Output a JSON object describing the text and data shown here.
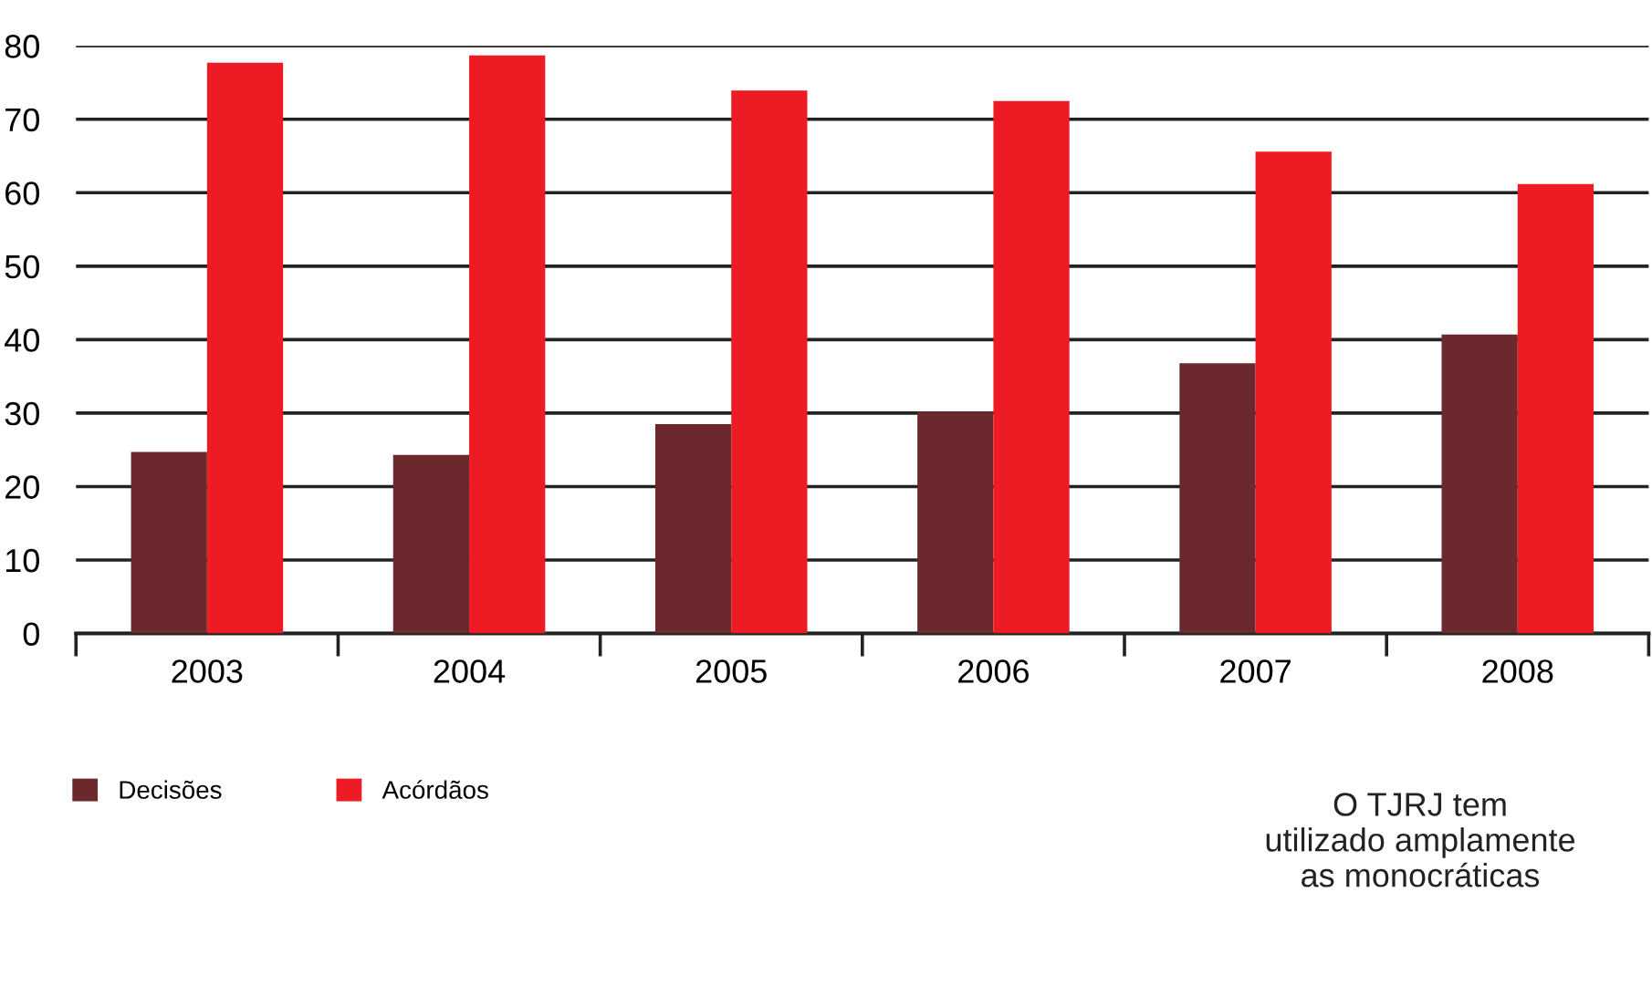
{
  "chart_data": {
    "type": "bar",
    "categories": [
      "2003",
      "2004",
      "2005",
      "2006",
      "2007",
      "2008"
    ],
    "series": [
      {
        "name": "Decisões",
        "color": "#6b292d",
        "values": [
          24.7,
          24.3,
          28.5,
          30.2,
          36.8,
          40.7
        ]
      },
      {
        "name": "Acórdãos",
        "color": "#ed1c24",
        "values": [
          77.7,
          78.7,
          73.9,
          72.5,
          65.6,
          61.2
        ]
      }
    ],
    "ylim": [
      0,
      80
    ],
    "yticks": [
      0,
      10,
      20,
      30,
      40,
      50,
      60,
      70,
      80
    ],
    "grid": "y",
    "legend": "bottom left",
    "annotations": [
      "O TJRJ tem\nutilizado amplamente\nas monocráticas"
    ]
  }
}
